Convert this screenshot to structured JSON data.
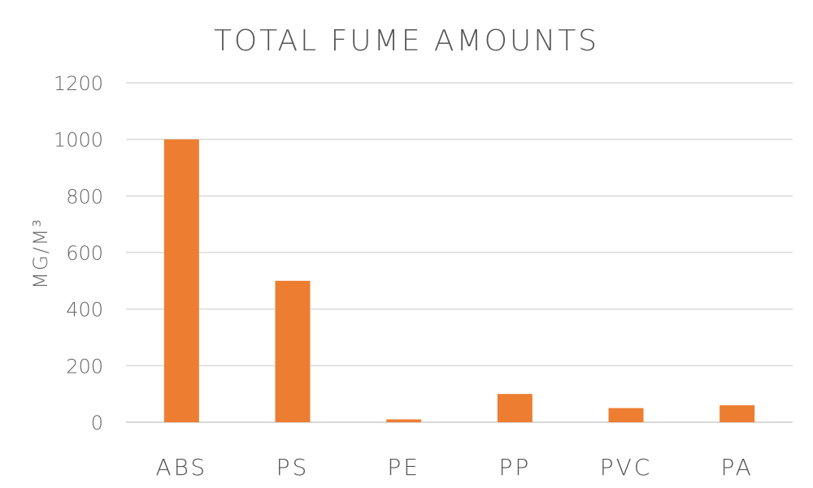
{
  "chart_data": {
    "type": "bar",
    "title": "TOTAL FUME AMOUNTS",
    "xlabel": "",
    "ylabel": "MG/M³",
    "categories": [
      "ABS",
      "PS",
      "PE",
      "PP",
      "PVC",
      "PA"
    ],
    "values": [
      1000,
      500,
      10,
      100,
      50,
      60
    ],
    "ylim": [
      0,
      1200
    ],
    "yticks": [
      "0",
      "200",
      "400",
      "600",
      "800",
      "1000",
      "1200"
    ],
    "grid": true,
    "legend": "none",
    "colors": {
      "bar": "#ED7D31",
      "grid": "#D9D9D9",
      "text": "#595959"
    }
  }
}
